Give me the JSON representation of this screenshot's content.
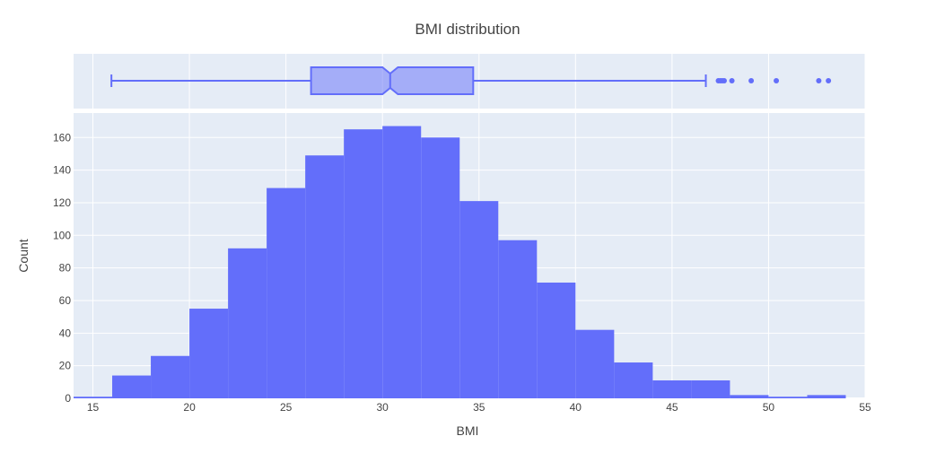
{
  "chart_data": {
    "type": "histogram",
    "title": "BMI distribution",
    "xlabel": "BMI",
    "ylabel": "Count",
    "xlim": [
      14,
      55
    ],
    "ylim": [
      0,
      175
    ],
    "grid": true,
    "color": "#636efa",
    "plot_bg": "#e5ecf6",
    "x_ticks": [
      15,
      20,
      25,
      30,
      35,
      40,
      45,
      50,
      55
    ],
    "y_ticks": [
      0,
      20,
      40,
      60,
      80,
      100,
      120,
      140,
      160
    ],
    "bins": [
      {
        "start": 14,
        "end": 16,
        "count": 1
      },
      {
        "start": 16,
        "end": 18,
        "count": 14
      },
      {
        "start": 18,
        "end": 20,
        "count": 26
      },
      {
        "start": 20,
        "end": 22,
        "count": 55
      },
      {
        "start": 22,
        "end": 24,
        "count": 92
      },
      {
        "start": 24,
        "end": 26,
        "count": 129
      },
      {
        "start": 26,
        "end": 28,
        "count": 149
      },
      {
        "start": 28,
        "end": 30,
        "count": 165
      },
      {
        "start": 30,
        "end": 32,
        "count": 167
      },
      {
        "start": 32,
        "end": 34,
        "count": 160
      },
      {
        "start": 34,
        "end": 36,
        "count": 121
      },
      {
        "start": 36,
        "end": 38,
        "count": 97
      },
      {
        "start": 38,
        "end": 40,
        "count": 71
      },
      {
        "start": 40,
        "end": 42,
        "count": 42
      },
      {
        "start": 42,
        "end": 44,
        "count": 22
      },
      {
        "start": 44,
        "end": 46,
        "count": 11
      },
      {
        "start": 46,
        "end": 48,
        "count": 11
      },
      {
        "start": 48,
        "end": 50,
        "count": 2
      },
      {
        "start": 50,
        "end": 52,
        "count": 1
      },
      {
        "start": 52,
        "end": 54,
        "count": 2
      }
    ],
    "box": {
      "notched": true,
      "min": 15.96,
      "q1": 26.3,
      "median": 30.4,
      "q3": 34.7,
      "max": 46.75,
      "notch_low": 30.0,
      "notch_high": 30.8,
      "outliers": [
        47.4,
        47.5,
        47.6,
        47.7,
        48.1,
        49.1,
        50.4,
        52.6,
        53.1
      ]
    }
  }
}
